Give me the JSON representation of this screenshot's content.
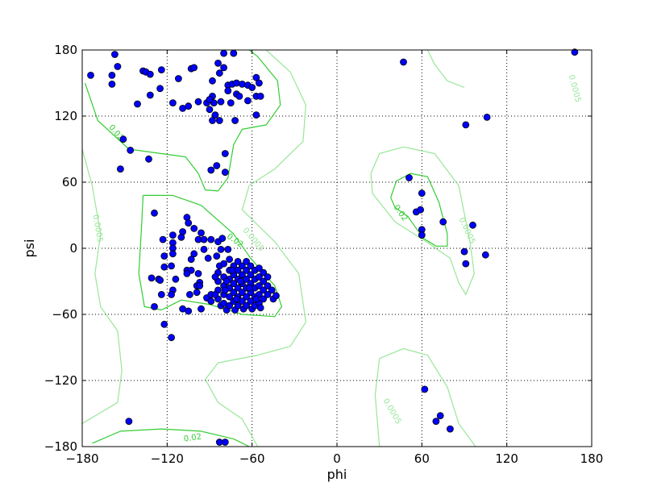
{
  "chart_data": {
    "type": "scatter",
    "title": "",
    "xlabel": "phi",
    "ylabel": "psi",
    "xlim": [
      -180,
      180
    ],
    "ylim": [
      -180,
      180
    ],
    "xticks": [
      -180,
      -120,
      -60,
      0,
      60,
      120,
      180
    ],
    "yticks": [
      -180,
      -120,
      -60,
      0,
      60,
      120,
      180
    ],
    "xtick_labels": [
      "−180",
      "−120",
      "−60",
      "0",
      "60",
      "120",
      "180"
    ],
    "ytick_labels": [
      "−180",
      "−120",
      "−60",
      "0",
      "60",
      "120",
      "180"
    ],
    "grid": true,
    "colors": {
      "points": "#0000ff",
      "contour_high": "#33cc33",
      "contour_low": "#99e699"
    },
    "points": [
      [
        -157,
        176
      ],
      [
        -155,
        165
      ],
      [
        -159,
        157
      ],
      [
        -159,
        149
      ],
      [
        -174,
        157
      ],
      [
        -137,
        161
      ],
      [
        -135,
        160
      ],
      [
        -132,
        158
      ],
      [
        -124,
        162
      ],
      [
        -125,
        145
      ],
      [
        -132,
        139
      ],
      [
        -141,
        131
      ],
      [
        -116,
        132
      ],
      [
        -112,
        154
      ],
      [
        -109,
        127
      ],
      [
        -105,
        129
      ],
      [
        -103,
        163
      ],
      [
        -101,
        164
      ],
      [
        -98,
        133
      ],
      [
        -92,
        132
      ],
      [
        -87,
        132
      ],
      [
        -88,
        152
      ],
      [
        -84,
        168
      ],
      [
        -80,
        177
      ],
      [
        -73,
        177
      ],
      [
        -80,
        164
      ],
      [
        -83,
        159
      ],
      [
        -77,
        148
      ],
      [
        -74,
        149
      ],
      [
        -71,
        150
      ],
      [
        -67,
        149
      ],
      [
        -63,
        148
      ],
      [
        -60,
        146
      ],
      [
        -57,
        155
      ],
      [
        -55,
        150
      ],
      [
        -77,
        143
      ],
      [
        -71,
        140
      ],
      [
        -69,
        138
      ],
      [
        -75,
        132
      ],
      [
        -82,
        133
      ],
      [
        -88,
        138
      ],
      [
        -90,
        135
      ],
      [
        -90,
        126
      ],
      [
        -86,
        121
      ],
      [
        -83,
        116
      ],
      [
        -88,
        116
      ],
      [
        -72,
        116
      ],
      [
        -57,
        138
      ],
      [
        -54,
        138
      ],
      [
        -63,
        134
      ],
      [
        -57,
        121
      ],
      [
        -79,
        86
      ],
      [
        -79,
        69
      ],
      [
        -85,
        75
      ],
      [
        -89,
        71
      ],
      [
        -153,
        72
      ],
      [
        -133,
        81
      ],
      [
        -146,
        89
      ],
      [
        -151,
        99
      ],
      [
        -129,
        32
      ],
      [
        -123,
        8
      ],
      [
        -116,
        12
      ],
      [
        -116,
        5
      ],
      [
        -116,
        0
      ],
      [
        -116,
        -5
      ],
      [
        -122,
        -7
      ],
      [
        -122,
        -17
      ],
      [
        -117,
        -16
      ],
      [
        -131,
        -27
      ],
      [
        -126,
        -28
      ],
      [
        -125,
        -29
      ],
      [
        -114,
        -28
      ],
      [
        -116,
        -38
      ],
      [
        -124,
        -42
      ],
      [
        -117,
        -42
      ],
      [
        -129,
        -53
      ],
      [
        -122,
        -69
      ],
      [
        -117,
        -81
      ],
      [
        -147,
        -157
      ],
      [
        -109,
        -55
      ],
      [
        -105,
        -57
      ],
      [
        -96,
        -55
      ],
      [
        -106,
        28
      ],
      [
        -105,
        23
      ],
      [
        -101,
        18
      ],
      [
        -109,
        15
      ],
      [
        -110,
        10
      ],
      [
        -96,
        14
      ],
      [
        -98,
        8
      ],
      [
        -94,
        8
      ],
      [
        -89,
        8
      ],
      [
        -94,
        -1
      ],
      [
        -101,
        -5
      ],
      [
        -103,
        -10
      ],
      [
        -106,
        -20
      ],
      [
        -103,
        -20
      ],
      [
        -106,
        -23
      ],
      [
        -98,
        -23
      ],
      [
        -97,
        -31
      ],
      [
        -99,
        -34
      ],
      [
        -97,
        -34
      ],
      [
        -104,
        -42
      ],
      [
        -92,
        -45
      ],
      [
        -89,
        -48
      ],
      [
        -89,
        -42
      ],
      [
        -84,
        6
      ],
      [
        -82,
        -1
      ],
      [
        -81,
        9
      ],
      [
        -77,
        -1
      ],
      [
        -85,
        -7
      ],
      [
        -91,
        -9
      ],
      [
        -83,
        -16
      ],
      [
        -99,
        -40
      ],
      [
        -84,
        -22
      ],
      [
        -84,
        -30
      ],
      [
        -84,
        -38
      ],
      [
        -84,
        -46
      ],
      [
        -82,
        -52
      ],
      [
        -80,
        -14
      ],
      [
        -80,
        -26
      ],
      [
        -80,
        -34
      ],
      [
        -80,
        -42
      ],
      [
        -80,
        -50
      ],
      [
        -78,
        -56
      ],
      [
        -76,
        -10
      ],
      [
        -76,
        -20
      ],
      [
        -76,
        -28
      ],
      [
        -76,
        -36
      ],
      [
        -76,
        -44
      ],
      [
        -76,
        -52
      ],
      [
        -73,
        -16
      ],
      [
        -73,
        -24
      ],
      [
        -73,
        -32
      ],
      [
        -73,
        -40
      ],
      [
        -73,
        -48
      ],
      [
        -72,
        -56
      ],
      [
        -70,
        -12
      ],
      [
        -70,
        -20
      ],
      [
        -70,
        -28
      ],
      [
        -70,
        -36
      ],
      [
        -70,
        -44
      ],
      [
        -70,
        -52
      ],
      [
        -67,
        -16
      ],
      [
        -67,
        -24
      ],
      [
        -67,
        -32
      ],
      [
        -67,
        -40
      ],
      [
        -67,
        -48
      ],
      [
        -66,
        -55
      ],
      [
        -64,
        -12
      ],
      [
        -64,
        -20
      ],
      [
        -64,
        -28
      ],
      [
        -64,
        -36
      ],
      [
        -64,
        -44
      ],
      [
        -64,
        -52
      ],
      [
        -61,
        -16
      ],
      [
        -61,
        -24
      ],
      [
        -61,
        -32
      ],
      [
        -61,
        -40
      ],
      [
        -61,
        -48
      ],
      [
        -60,
        -55
      ],
      [
        -58,
        -20
      ],
      [
        -58,
        -28
      ],
      [
        -58,
        -36
      ],
      [
        -58,
        -44
      ],
      [
        -58,
        -52
      ],
      [
        -55,
        -18
      ],
      [
        -55,
        -26
      ],
      [
        -55,
        -34
      ],
      [
        -55,
        -42
      ],
      [
        -55,
        -50
      ],
      [
        -52,
        -22
      ],
      [
        -52,
        -30
      ],
      [
        -52,
        -38
      ],
      [
        -52,
        -46
      ],
      [
        -49,
        -26
      ],
      [
        -49,
        -34
      ],
      [
        -49,
        -42
      ],
      [
        -46,
        -38
      ],
      [
        -45,
        -46
      ],
      [
        -43,
        -43
      ],
      [
        -86,
        -26
      ],
      [
        -86,
        -42
      ],
      [
        -78,
        -30
      ],
      [
        -74,
        -20
      ],
      [
        -68,
        -30
      ],
      [
        -62,
        -36
      ],
      [
        -57,
        -46
      ],
      [
        -54,
        -54
      ],
      [
        -79,
        -38
      ],
      [
        -71,
        -46
      ],
      [
        47,
        169
      ],
      [
        168,
        178
      ],
      [
        91,
        112
      ],
      [
        106,
        119
      ],
      [
        51,
        64
      ],
      [
        60,
        50
      ],
      [
        56,
        33
      ],
      [
        59,
        35
      ],
      [
        75,
        24
      ],
      [
        60,
        17
      ],
      [
        60,
        12
      ],
      [
        96,
        21
      ],
      [
        90,
        -3
      ],
      [
        91,
        -14
      ],
      [
        105,
        -6
      ],
      [
        62,
        -128
      ],
      [
        73,
        -152
      ],
      [
        70,
        -157
      ],
      [
        80,
        -164
      ],
      [
        -83,
        -176
      ],
      [
        -79,
        -176
      ]
    ],
    "contours": [
      {
        "level": "0.02",
        "color": "#33cc33",
        "path": [
          [
            -178,
            150
          ],
          [
            -169,
            116
          ],
          [
            -147,
            90
          ],
          [
            -107,
            83
          ],
          [
            -98,
            68
          ],
          [
            -93,
            53
          ],
          [
            -84,
            52
          ],
          [
            -77,
            64
          ],
          [
            -73,
            94
          ],
          [
            -67,
            108
          ],
          [
            -50,
            112
          ],
          [
            -40,
            130
          ],
          [
            -42,
            152
          ],
          [
            -56,
            174
          ],
          [
            -62,
            180
          ]
        ]
      },
      {
        "level": "0.02",
        "color": "#33cc33",
        "path": [
          [
            -137,
            48
          ],
          [
            -138,
            21
          ],
          [
            -140,
            -23
          ],
          [
            -136,
            -53
          ],
          [
            -124,
            -56
          ],
          [
            -110,
            -47
          ],
          [
            -90,
            -51
          ],
          [
            -67,
            -60
          ],
          [
            -44,
            -62
          ],
          [
            -39,
            -53
          ],
          [
            -44,
            -34
          ],
          [
            -61,
            -9
          ],
          [
            -73,
            13
          ],
          [
            -96,
            39
          ],
          [
            -116,
            48
          ],
          [
            -137,
            48
          ]
        ]
      },
      {
        "level": "0.02",
        "color": "#33cc33",
        "path": [
          [
            38,
            46
          ],
          [
            42,
            61
          ],
          [
            52,
            68
          ],
          [
            64,
            65
          ],
          [
            72,
            42
          ],
          [
            78,
            13
          ],
          [
            78,
            2
          ],
          [
            70,
            2
          ],
          [
            61,
            9
          ],
          [
            50,
            29
          ],
          [
            41,
            37
          ],
          [
            38,
            46
          ]
        ]
      },
      {
        "level": "0.02",
        "color": "#33cc33",
        "path": [
          [
            -173,
            -177
          ],
          [
            -153,
            -166
          ],
          [
            -124,
            -164
          ],
          [
            -96,
            -166
          ],
          [
            -73,
            -173
          ],
          [
            -62,
            -180
          ]
        ]
      },
      {
        "level": "0.0005",
        "color": "#99e699",
        "path": [
          [
            -180,
            90
          ],
          [
            -173,
            57
          ],
          [
            -167,
            13
          ],
          [
            -171,
            -23
          ],
          [
            -167,
            -53
          ],
          [
            -155,
            -75
          ],
          [
            -152,
            -111
          ],
          [
            -155,
            -140
          ],
          [
            -180,
            -159
          ]
        ]
      },
      {
        "level": "0.0005",
        "color": "#99e699",
        "path": [
          [
            -50,
            180
          ],
          [
            -33,
            160
          ],
          [
            -22,
            130
          ],
          [
            -24,
            97
          ],
          [
            -44,
            72
          ],
          [
            -62,
            57
          ],
          [
            -67,
            35
          ],
          [
            -44,
            6
          ],
          [
            -27,
            -23
          ],
          [
            -22,
            -67
          ],
          [
            -33,
            -89
          ],
          [
            -56,
            -97
          ],
          [
            -84,
            -104
          ],
          [
            -93,
            -119
          ],
          [
            -84,
            -140
          ],
          [
            -67,
            -155
          ],
          [
            -56,
            -180
          ]
        ]
      },
      {
        "level": "0.0005",
        "color": "#99e699",
        "path": [
          [
            30,
            -180
          ],
          [
            27,
            -133
          ],
          [
            30,
            -100
          ],
          [
            47,
            -91
          ],
          [
            64,
            -97
          ],
          [
            78,
            -126
          ],
          [
            86,
            -159
          ],
          [
            98,
            -180
          ]
        ]
      },
      {
        "level": "0.0005",
        "color": "#99e699",
        "path": [
          [
            64,
            180
          ],
          [
            69,
            167
          ],
          [
            78,
            152
          ],
          [
            90,
            146
          ]
        ]
      },
      {
        "level": "0.0005",
        "color": "#99e699",
        "path": [
          [
            24,
            68
          ],
          [
            30,
            86
          ],
          [
            47,
            92
          ],
          [
            69,
            86
          ],
          [
            86,
            57
          ],
          [
            94,
            6
          ],
          [
            97,
            -23
          ],
          [
            91,
            -42
          ],
          [
            86,
            -31
          ],
          [
            80,
            -9
          ],
          [
            63,
            6
          ],
          [
            41,
            24
          ],
          [
            25,
            50
          ],
          [
            24,
            68
          ]
        ]
      }
    ],
    "contour_labels": [
      {
        "text": "0.02",
        "phi": -156,
        "psi": 105,
        "angle": 50,
        "color": "#33cc33"
      },
      {
        "text": "0.02",
        "phi": -72,
        "psi": 7,
        "angle": 35,
        "color": "#33cc33"
      },
      {
        "text": "0.02",
        "phi": 45,
        "psi": 32,
        "angle": 55,
        "color": "#33cc33"
      },
      {
        "text": "0.02",
        "phi": -102,
        "psi": -172,
        "angle": -8,
        "color": "#33cc33"
      },
      {
        "text": "0.0005",
        "phi": -169,
        "psi": 18,
        "angle": 80,
        "color": "#99e699"
      },
      {
        "text": "0.0005",
        "phi": -59,
        "psi": 8,
        "angle": 50,
        "color": "#99e699"
      },
      {
        "text": "0.0005",
        "phi": 92,
        "psi": 16,
        "angle": 65,
        "color": "#99e699"
      },
      {
        "text": "0.0005",
        "phi": 39,
        "psi": -148,
        "angle": 60,
        "color": "#99e699"
      },
      {
        "text": "0.0005",
        "phi": 168,
        "psi": 145,
        "angle": 75,
        "color": "#99e699"
      }
    ]
  }
}
